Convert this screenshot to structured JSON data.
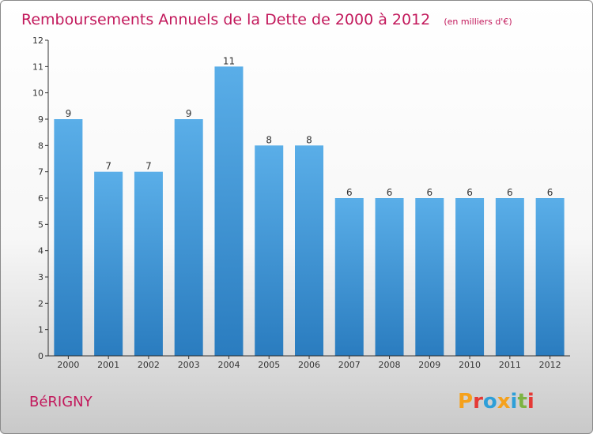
{
  "chart_data": {
    "type": "bar",
    "title": "Remboursements Annuels de la Dette de 2000 à 2012",
    "subtitle": "(en milliers d'€)",
    "xlabel": "",
    "ylabel": "",
    "categories": [
      "2000",
      "2001",
      "2002",
      "2003",
      "2004",
      "2005",
      "2006",
      "2007",
      "2008",
      "2009",
      "2010",
      "2011",
      "2012"
    ],
    "values": [
      9,
      7,
      7,
      9,
      11,
      8,
      8,
      6,
      6,
      6,
      6,
      6,
      6
    ],
    "value_labels": [
      "9",
      "7",
      "7",
      "9",
      "11",
      "8",
      "8",
      "6",
      "6",
      "6",
      "6",
      "6",
      "6"
    ],
    "ylim": [
      0,
      12
    ],
    "yticks": [
      "0",
      "1",
      "2",
      "3",
      "4",
      "5",
      "6",
      "7",
      "8",
      "9",
      "10",
      "11",
      "12"
    ],
    "grid": false,
    "legend": "none"
  },
  "footer": {
    "place": "BéRIGNY",
    "logo": "Proxiti"
  },
  "colors": {
    "title": "#c2185b",
    "place": "#c2185b",
    "bar_top": "#5aaee8",
    "bar_bottom": "#2a7cbf",
    "axis": "#333333",
    "logo_letters": [
      "#f5a11c",
      "#e53935",
      "#2e9fd8",
      "#f5a11c",
      "#2e9fd8",
      "#7cb342",
      "#e53935"
    ]
  }
}
